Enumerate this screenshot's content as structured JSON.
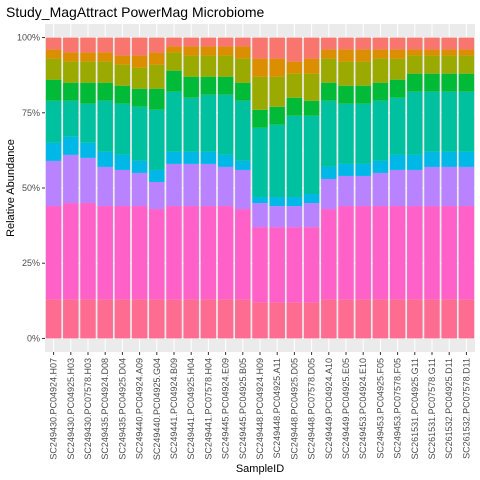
{
  "chart_data": {
    "type": "bar",
    "stacked": true,
    "title": "Study_MagAttract PowerMag Microbiome",
    "xlabel": "SampleID",
    "ylabel": "Relative Abundance",
    "ylim": [
      0,
      1
    ],
    "yticks": [
      0,
      0.25,
      0.5,
      0.75,
      1
    ],
    "ytick_labels": [
      "0%",
      "25%",
      "50%",
      "75%",
      "100%"
    ],
    "grid": true,
    "background": "#ebebeb",
    "legend": "none",
    "categories": [
      "SC249430.PC04924.H07",
      "SC249430.PC04925.H03",
      "SC249430.PC07578.H03",
      "SC249435.PC04924.D08",
      "SC249435.PC04925.D04",
      "SC249440.PC04924.A09",
      "SC249440.PC04925.G04",
      "SC249441.PC04924.B09",
      "SC249441.PC04925.H04",
      "SC249441.PC07578.H04",
      "SC249445.PC04924.E09",
      "SC249445.PC04925.B05",
      "SC249448.PC04924.H09",
      "SC249448.PC04925.A11",
      "SC249448.PC04925.D05",
      "SC249448.PC07578.D05",
      "SC249449.PC04924.A10",
      "SC249449.PC04925.E05",
      "SC249453.PC04924.E10",
      "SC249453.PC04925.F05",
      "SC249453.PC07578.F05",
      "SC261531.PC04925.G11",
      "SC261531.PC07578.G11",
      "SC261532.PC04925.D11",
      "SC261532.PC07578.D11"
    ],
    "series": [
      {
        "color": "#FF6C91",
        "values": [
          0.13,
          0.13,
          0.13,
          0.13,
          0.13,
          0.13,
          0.13,
          0.13,
          0.13,
          0.13,
          0.13,
          0.13,
          0.12,
          0.12,
          0.12,
          0.12,
          0.13,
          0.13,
          0.13,
          0.13,
          0.13,
          0.13,
          0.13,
          0.13,
          0.13
        ]
      },
      {
        "color": "#FF61C9",
        "values": [
          0.31,
          0.32,
          0.32,
          0.31,
          0.31,
          0.31,
          0.3,
          0.31,
          0.31,
          0.31,
          0.31,
          0.3,
          0.25,
          0.25,
          0.25,
          0.25,
          0.3,
          0.31,
          0.31,
          0.31,
          0.31,
          0.31,
          0.31,
          0.31,
          0.31
        ]
      },
      {
        "color": "#B983FF",
        "values": [
          0.15,
          0.16,
          0.15,
          0.13,
          0.12,
          0.11,
          0.09,
          0.14,
          0.14,
          0.14,
          0.13,
          0.13,
          0.08,
          0.07,
          0.07,
          0.08,
          0.1,
          0.1,
          0.1,
          0.11,
          0.12,
          0.12,
          0.13,
          0.13,
          0.13
        ]
      },
      {
        "color": "#00B8E7",
        "values": [
          0.06,
          0.06,
          0.05,
          0.05,
          0.05,
          0.04,
          0.04,
          0.04,
          0.04,
          0.04,
          0.04,
          0.03,
          0.02,
          0.03,
          0.03,
          0.03,
          0.04,
          0.04,
          0.04,
          0.04,
          0.05,
          0.05,
          0.05,
          0.05,
          0.05
        ]
      },
      {
        "color": "#00C19F",
        "values": [
          0.14,
          0.12,
          0.13,
          0.17,
          0.17,
          0.18,
          0.2,
          0.2,
          0.18,
          0.19,
          0.2,
          0.2,
          0.23,
          0.24,
          0.27,
          0.26,
          0.22,
          0.2,
          0.2,
          0.2,
          0.19,
          0.21,
          0.2,
          0.2,
          0.2
        ]
      },
      {
        "color": "#00BA38",
        "values": [
          0.07,
          0.06,
          0.07,
          0.06,
          0.06,
          0.06,
          0.07,
          0.07,
          0.07,
          0.06,
          0.06,
          0.06,
          0.06,
          0.06,
          0.06,
          0.05,
          0.06,
          0.06,
          0.06,
          0.06,
          0.06,
          0.06,
          0.06,
          0.06,
          0.06
        ]
      },
      {
        "color": "#9BAA00",
        "values": [
          0.07,
          0.07,
          0.07,
          0.07,
          0.07,
          0.07,
          0.08,
          0.06,
          0.07,
          0.07,
          0.07,
          0.08,
          0.11,
          0.1,
          0.08,
          0.09,
          0.08,
          0.08,
          0.08,
          0.08,
          0.07,
          0.06,
          0.06,
          0.06,
          0.06
        ]
      },
      {
        "color": "#DB8E00",
        "values": [
          0.03,
          0.03,
          0.03,
          0.03,
          0.03,
          0.04,
          0.04,
          0.02,
          0.03,
          0.03,
          0.03,
          0.04,
          0.06,
          0.06,
          0.04,
          0.05,
          0.03,
          0.04,
          0.04,
          0.03,
          0.03,
          0.02,
          0.02,
          0.02,
          0.02
        ]
      },
      {
        "color": "#F8766D",
        "values": [
          0.04,
          0.05,
          0.05,
          0.05,
          0.06,
          0.06,
          0.05,
          0.03,
          0.03,
          0.03,
          0.03,
          0.03,
          0.07,
          0.07,
          0.08,
          0.07,
          0.04,
          0.04,
          0.04,
          0.04,
          0.04,
          0.04,
          0.04,
          0.04,
          0.04
        ]
      }
    ]
  }
}
